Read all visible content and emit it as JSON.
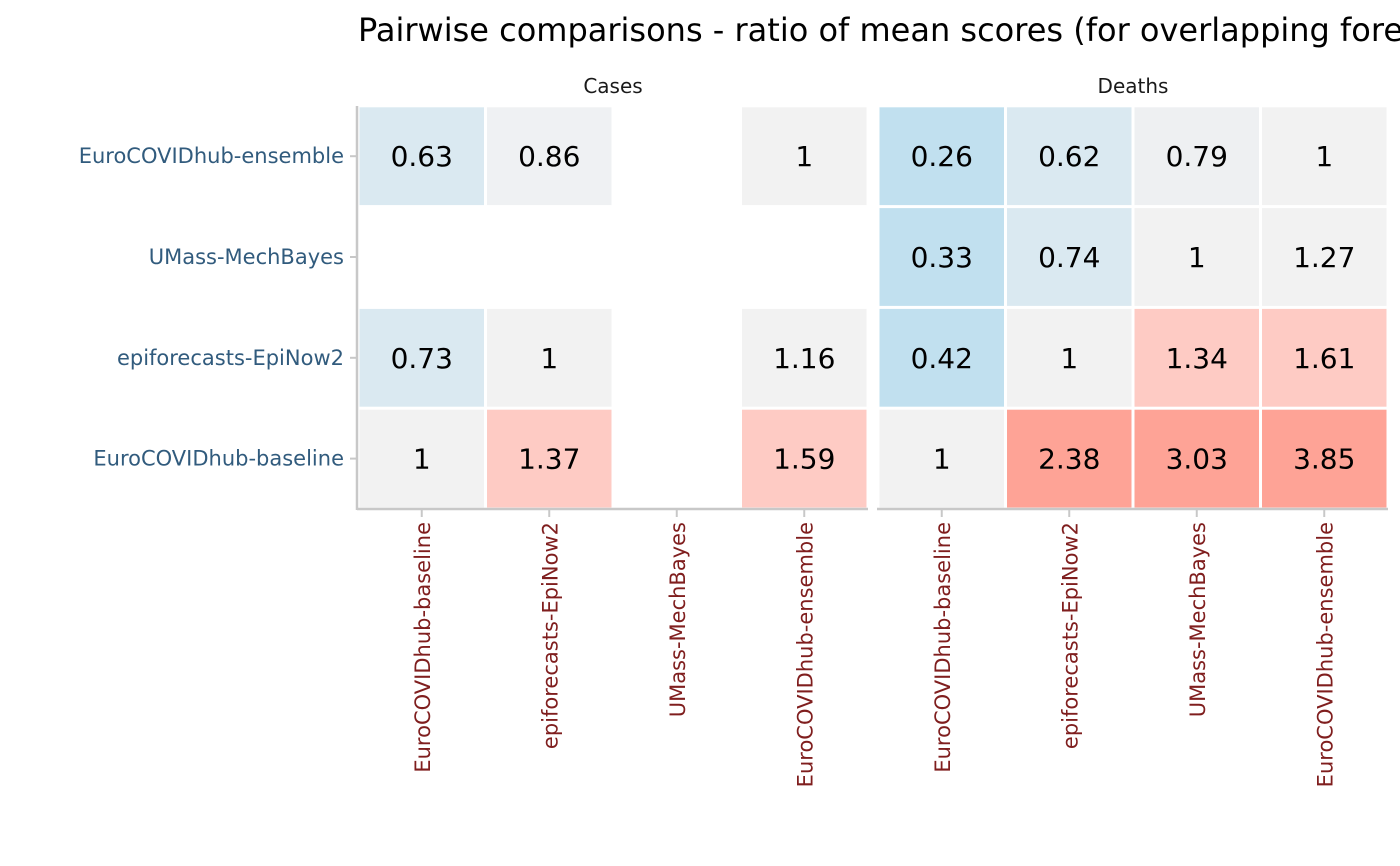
{
  "chart_data": {
    "type": "heatmap",
    "title": "Pairwise comparisons - ratio of mean scores (for overlapping forecast sets)",
    "x_categories": [
      "EuroCOVIDhub-baseline",
      "epiforecasts-EpiNow2",
      "UMass-MechBayes",
      "EuroCOVIDhub-ensemble"
    ],
    "y_categories": [
      "EuroCOVIDhub-baseline",
      "epiforecasts-EpiNow2",
      "UMass-MechBayes",
      "EuroCOVIDhub-ensemble"
    ],
    "panels": [
      {
        "name": "Cases",
        "cells": [
          {
            "x": "EuroCOVIDhub-baseline",
            "y": "EuroCOVIDhub-ensemble",
            "value": 0.63,
            "label": "0.63",
            "color": "#dae9f1"
          },
          {
            "x": "epiforecasts-EpiNow2",
            "y": "EuroCOVIDhub-ensemble",
            "value": 0.86,
            "label": "0.86",
            "color": "#eff1f3"
          },
          {
            "x": "EuroCOVIDhub-ensemble",
            "y": "EuroCOVIDhub-ensemble",
            "value": 1,
            "label": "1",
            "color": "#f2f2f2"
          },
          {
            "x": "EuroCOVIDhub-baseline",
            "y": "epiforecasts-EpiNow2",
            "value": 0.73,
            "label": "0.73",
            "color": "#dae9f1"
          },
          {
            "x": "epiforecasts-EpiNow2",
            "y": "epiforecasts-EpiNow2",
            "value": 1,
            "label": "1",
            "color": "#f2f2f2"
          },
          {
            "x": "EuroCOVIDhub-ensemble",
            "y": "epiforecasts-EpiNow2",
            "value": 1.16,
            "label": "1.16",
            "color": "#f2f2f2"
          },
          {
            "x": "EuroCOVIDhub-baseline",
            "y": "EuroCOVIDhub-baseline",
            "value": 1,
            "label": "1",
            "color": "#f2f2f2"
          },
          {
            "x": "epiforecasts-EpiNow2",
            "y": "EuroCOVIDhub-baseline",
            "value": 1.37,
            "label": "1.37",
            "color": "#fecbc4"
          },
          {
            "x": "EuroCOVIDhub-ensemble",
            "y": "EuroCOVIDhub-baseline",
            "value": 1.59,
            "label": "1.59",
            "color": "#fecbc4"
          }
        ]
      },
      {
        "name": "Deaths",
        "cells": [
          {
            "x": "EuroCOVIDhub-baseline",
            "y": "EuroCOVIDhub-ensemble",
            "value": 0.26,
            "label": "0.26",
            "color": "#c1e0ef"
          },
          {
            "x": "epiforecasts-EpiNow2",
            "y": "EuroCOVIDhub-ensemble",
            "value": 0.62,
            "label": "0.62",
            "color": "#dae9f1"
          },
          {
            "x": "UMass-MechBayes",
            "y": "EuroCOVIDhub-ensemble",
            "value": 0.79,
            "label": "0.79",
            "color": "#eef0f2"
          },
          {
            "x": "EuroCOVIDhub-ensemble",
            "y": "EuroCOVIDhub-ensemble",
            "value": 1,
            "label": "1",
            "color": "#f2f2f2"
          },
          {
            "x": "EuroCOVIDhub-baseline",
            "y": "UMass-MechBayes",
            "value": 0.33,
            "label": "0.33",
            "color": "#c1e0ef"
          },
          {
            "x": "epiforecasts-EpiNow2",
            "y": "UMass-MechBayes",
            "value": 0.74,
            "label": "0.74",
            "color": "#dae9f1"
          },
          {
            "x": "UMass-MechBayes",
            "y": "UMass-MechBayes",
            "value": 1,
            "label": "1",
            "color": "#f2f2f2"
          },
          {
            "x": "EuroCOVIDhub-ensemble",
            "y": "UMass-MechBayes",
            "value": 1.27,
            "label": "1.27",
            "color": "#f2f2f2"
          },
          {
            "x": "EuroCOVIDhub-baseline",
            "y": "epiforecasts-EpiNow2",
            "value": 0.42,
            "label": "0.42",
            "color": "#c1e0ef"
          },
          {
            "x": "epiforecasts-EpiNow2",
            "y": "epiforecasts-EpiNow2",
            "value": 1,
            "label": "1",
            "color": "#f2f2f2"
          },
          {
            "x": "UMass-MechBayes",
            "y": "epiforecasts-EpiNow2",
            "value": 1.34,
            "label": "1.34",
            "color": "#fecbc4"
          },
          {
            "x": "EuroCOVIDhub-ensemble",
            "y": "epiforecasts-EpiNow2",
            "value": 1.61,
            "label": "1.61",
            "color": "#fecbc4"
          },
          {
            "x": "EuroCOVIDhub-baseline",
            "y": "EuroCOVIDhub-baseline",
            "value": 1,
            "label": "1",
            "color": "#f2f2f2"
          },
          {
            "x": "epiforecasts-EpiNow2",
            "y": "EuroCOVIDhub-baseline",
            "value": 2.38,
            "label": "2.38",
            "color": "#fea396"
          },
          {
            "x": "UMass-MechBayes",
            "y": "EuroCOVIDhub-baseline",
            "value": 3.03,
            "label": "3.03",
            "color": "#fea396"
          },
          {
            "x": "EuroCOVIDhub-ensemble",
            "y": "EuroCOVIDhub-baseline",
            "value": 3.85,
            "label": "3.85",
            "color": "#fea396"
          }
        ]
      }
    ],
    "colors": {
      "y_axis_text": "#315b7d",
      "x_axis_text": "#7f1e1e",
      "axis_line": "#c8c8c8"
    },
    "legend": "none",
    "grid": false
  }
}
